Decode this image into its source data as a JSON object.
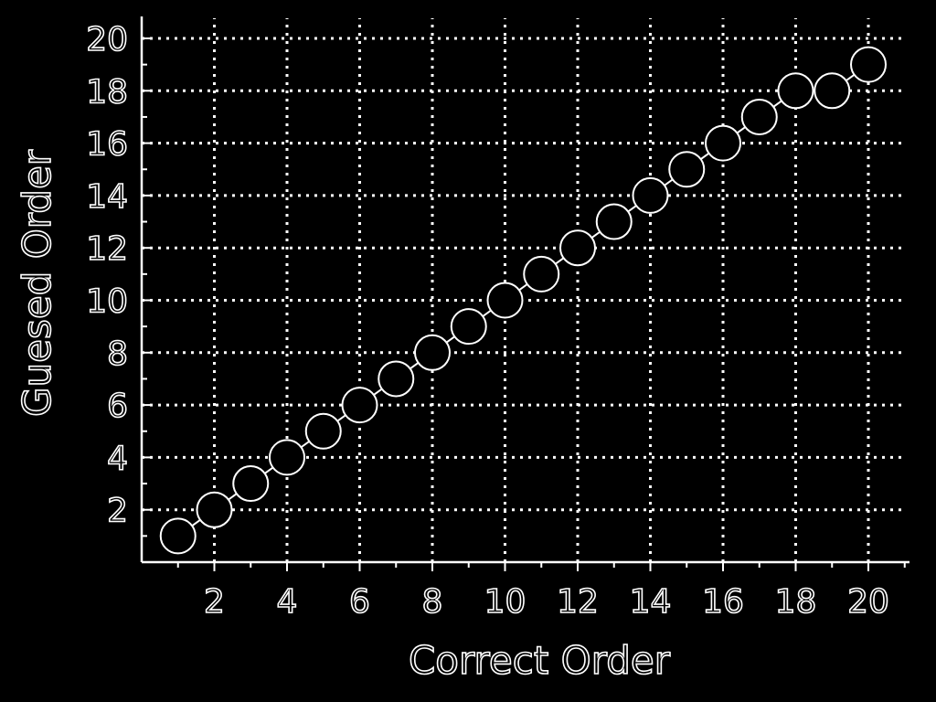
{
  "chart_data": {
    "type": "scatter",
    "xlabel": "Correct Order",
    "ylabel": "Guesed Order",
    "xlim": [
      0,
      21
    ],
    "ylim": [
      0,
      20.5
    ],
    "xticks": [
      2,
      4,
      6,
      8,
      10,
      12,
      14,
      16,
      18,
      20
    ],
    "yticks": [
      2,
      4,
      6,
      8,
      10,
      12,
      14,
      16,
      18,
      20
    ],
    "grid": true,
    "series": [
      {
        "x": [
          1,
          2,
          3,
          4,
          5,
          6,
          7,
          8,
          9,
          10,
          11,
          12,
          13,
          14,
          15,
          16,
          17,
          18,
          19,
          20
        ],
        "y": [
          1,
          2,
          3,
          4,
          5,
          6,
          7,
          8,
          9,
          10,
          11,
          12,
          13,
          14,
          15,
          16,
          17,
          18,
          18,
          19
        ]
      }
    ]
  }
}
